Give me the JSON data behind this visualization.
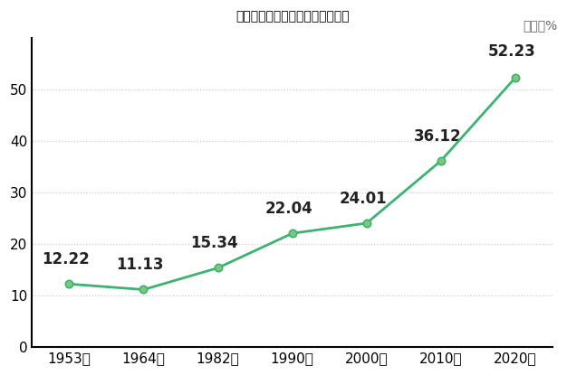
{
  "title": "甘肃省历次人口普查城镇人口比重",
  "unit_label": "单位：%",
  "years": [
    "1953年",
    "1964年",
    "1982年",
    "1990年",
    "2000年",
    "2010年",
    "2020年"
  ],
  "x_positions": [
    0,
    1,
    2,
    3,
    4,
    5,
    6
  ],
  "values": [
    12.22,
    11.13,
    15.34,
    22.04,
    24.01,
    36.12,
    52.23
  ],
  "line_color": "#3cb371",
  "marker_face_color": "#7DC87D",
  "label_color": "#222222",
  "background_color": "#ffffff",
  "ylim": [
    0,
    60
  ],
  "yticks": [
    0,
    10,
    20,
    30,
    40,
    50
  ],
  "grid_color": "#cccccc",
  "title_fontsize": 17,
  "label_fontsize": 12,
  "unit_fontsize": 10,
  "tick_fontsize": 11
}
